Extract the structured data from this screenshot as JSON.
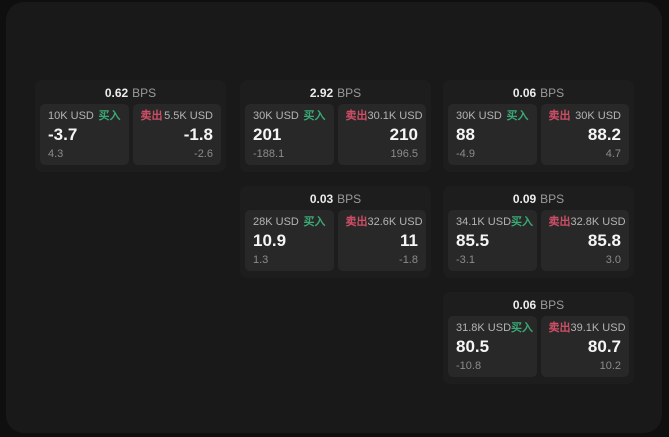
{
  "labels": {
    "bps_unit": "BPS",
    "buy": "买入",
    "sell": "卖出"
  },
  "colors": {
    "buy": "#3aa875",
    "sell": "#cf4e66",
    "value_text": "#f5f5f5",
    "card_bg": "#1d1d1d",
    "panel_bg": "#282828",
    "window_bg": "#191919"
  },
  "cards": [
    {
      "bps": "0.62",
      "buy": {
        "size": "10K USD",
        "value": "-3.7",
        "sub": "4.3"
      },
      "sell": {
        "size": "5.5K USD",
        "value": "-1.8",
        "sub": "-2.6"
      }
    },
    {
      "bps": "2.92",
      "buy": {
        "size": "30K USD",
        "value": "201",
        "sub": "-188.1"
      },
      "sell": {
        "size": "30.1K USD",
        "value": "210",
        "sub": "196.5"
      }
    },
    {
      "bps": "0.06",
      "buy": {
        "size": "30K USD",
        "value": "88",
        "sub": "-4.9"
      },
      "sell": {
        "size": "30K USD",
        "value": "88.2",
        "sub": "4.7"
      }
    },
    {
      "bps": "0.03",
      "buy": {
        "size": "28K USD",
        "value": "10.9",
        "sub": "1.3"
      },
      "sell": {
        "size": "32.6K USD",
        "value": "11",
        "sub": "-1.8"
      }
    },
    {
      "bps": "0.09",
      "buy": {
        "size": "34.1K USD",
        "value": "85.5",
        "sub": "-3.1"
      },
      "sell": {
        "size": "32.8K USD",
        "value": "85.8",
        "sub": "3.0"
      }
    },
    {
      "bps": "0.06",
      "buy": {
        "size": "31.8K USD",
        "value": "80.5",
        "sub": "-10.8"
      },
      "sell": {
        "size": "39.1K USD",
        "value": "80.7",
        "sub": "10.2"
      }
    }
  ]
}
